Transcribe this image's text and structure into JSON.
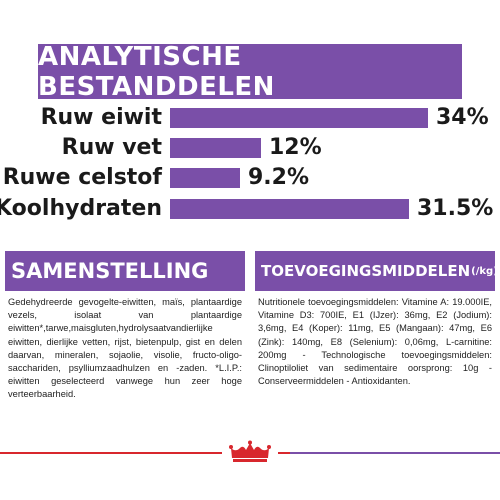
{
  "title": "ANALYTISCHE BESTANDDELEN",
  "rows": [
    {
      "label": "Ruw eiwit",
      "value": "34%",
      "fraction": 0.34
    },
    {
      "label": "Ruw vet",
      "value": "12%",
      "fraction": 0.12
    },
    {
      "label": "Ruwe celstof",
      "value": "9.2%",
      "fraction": 0.092
    },
    {
      "label": "Koolhydraten",
      "value": "31.5%",
      "fraction": 0.315
    }
  ],
  "composition": {
    "title": "SAMENSTELLING",
    "text": "Gedehydreerde gevogelte-eiwitten, maïs, plantaardige vezels, isolaat van plantaardige eiwitten*,tarwe,maisgluten,hydrolysaatvandierlijke eiwitten, dierlijke vetten, rijst, bietenpulp, gist en delen daarvan, mineralen, sojaolie, visolie, fructo-oligo-sacchariden, psylliumzaadhulzen en -zaden. *L.I.P.: eiwitten geselecteerd vanwege hun zeer hoge verteerbaarheid."
  },
  "additives": {
    "title": "TOEVOEGINGSMIDDELEN",
    "unit": "(/kg)",
    "text": "Nutritionele toevoegingsmiddelen: Vitamine A: 19.000IE, Vitamine D3: 700IE, E1 (IJzer): 36mg, E2 (Jodium): 3,6mg, E4 (Koper): 11mg, E5 (Mangaan): 47mg, E6 (Zink): 140mg, E8 (Selenium): 0,06mg, L-carnitine: 200mg - Technologische toevoegingsmiddelen: Clinoptiloliet van sedimentaire oorsprong: 10g - Conserveermiddelen - Antioxidanten."
  },
  "colors": {
    "accent": "#7a4fa8",
    "brand_red": "#d8272d"
  },
  "logo": "royal-canin-crown-icon"
}
